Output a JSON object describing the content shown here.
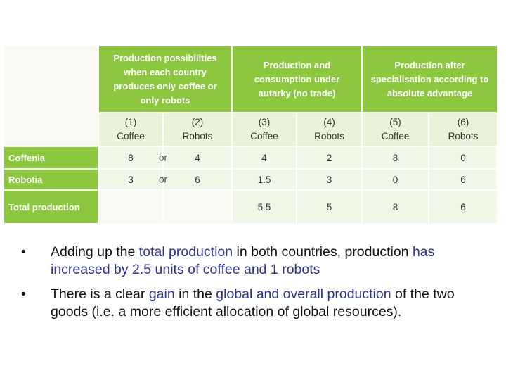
{
  "table": {
    "column_groups": [
      "Production possibilities when each country produces only coffee or only robots",
      "Production and consumption under autarky (no trade)",
      "Production after specialisation according to absolute advantage"
    ],
    "columns": [
      {
        "number": "(1)",
        "name": "Coffee"
      },
      {
        "number": "(2)",
        "name": "Robots"
      },
      {
        "number": "(3)",
        "name": "Coffee"
      },
      {
        "number": "(4)",
        "name": "Robots"
      },
      {
        "number": "(5)",
        "name": "Coffee"
      },
      {
        "number": "(6)",
        "name": "Robots"
      }
    ],
    "rows": [
      {
        "label": "Coffenia",
        "values": [
          8,
          4,
          4,
          2,
          8,
          0
        ],
        "separator": "or"
      },
      {
        "label": "Robotia",
        "values": [
          3,
          6,
          1.5,
          3,
          0,
          6
        ],
        "separator": "or"
      },
      {
        "label": "Total production",
        "values": [
          null,
          null,
          5.5,
          5,
          8,
          6
        ]
      }
    ]
  },
  "bullets": [
    [
      {
        "text": "Adding up the "
      },
      {
        "text": "total production",
        "highlight": true
      },
      {
        "text": " in both countries, production "
      },
      {
        "text": "has increased by 2.5 units of coffee and 1 robots",
        "highlight": true
      }
    ],
    [
      {
        "text": "There is a clear "
      },
      {
        "text": "gain",
        "highlight": true
      },
      {
        "text": " in the "
      },
      {
        "text": "global and overall production",
        "highlight": true
      },
      {
        "text": " of the two goods (i.e. a more efficient allocation of global resources)."
      }
    ]
  ]
}
